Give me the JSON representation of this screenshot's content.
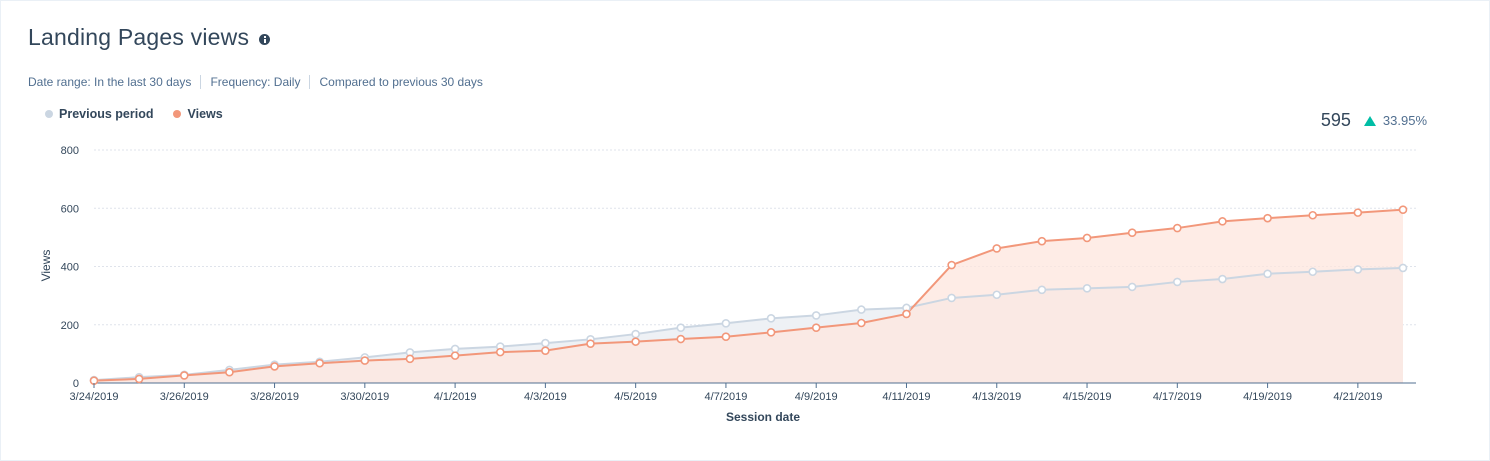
{
  "header": {
    "title": "Landing Pages views",
    "info_icon": "info-icon"
  },
  "filters": {
    "date_range": "Date range:  In the last 30 days",
    "frequency": "Frequency:  Daily",
    "compare": "Compared to previous 30 days"
  },
  "summary": {
    "total": "595",
    "change": "33.95%",
    "trend_icon": "triangle-up-icon",
    "trend_color": "#00bda5"
  },
  "chart_data": {
    "type": "area",
    "title": "",
    "xlabel": "Session date",
    "ylabel": "Views",
    "ylim": [
      0,
      800
    ],
    "yticks": [
      0,
      200,
      400,
      600,
      800
    ],
    "grid": true,
    "legend": "top-left",
    "x": [
      "3/24/2019",
      "3/25/2019",
      "3/26/2019",
      "3/27/2019",
      "3/28/2019",
      "3/29/2019",
      "3/30/2019",
      "3/31/2019",
      "4/1/2019",
      "4/2/2019",
      "4/3/2019",
      "4/4/2019",
      "4/5/2019",
      "4/6/2019",
      "4/7/2019",
      "4/8/2019",
      "4/9/2019",
      "4/10/2019",
      "4/11/2019",
      "4/12/2019",
      "4/13/2019",
      "4/14/2019",
      "4/15/2019",
      "4/16/2019",
      "4/17/2019",
      "4/18/2019",
      "4/19/2019",
      "4/20/2019",
      "4/21/2019",
      "4/22/2019"
    ],
    "xtick_labels": [
      "3/24/2019",
      "3/26/2019",
      "3/28/2019",
      "3/30/2019",
      "4/1/2019",
      "4/3/2019",
      "4/5/2019",
      "4/7/2019",
      "4/9/2019",
      "4/11/2019",
      "4/13/2019",
      "4/15/2019",
      "4/17/2019",
      "4/19/2019",
      "4/21/2019"
    ],
    "series": [
      {
        "name": "Previous period",
        "color": "#cbd6e2",
        "fill": "#eef1f5",
        "values": [
          10,
          20,
          28,
          45,
          63,
          73,
          88,
          105,
          117,
          125,
          137,
          150,
          168,
          190,
          205,
          222,
          232,
          252,
          258,
          292,
          303,
          320,
          325,
          330,
          347,
          357,
          375,
          382,
          390,
          395
        ]
      },
      {
        "name": "Views",
        "color": "#f2977a",
        "fill": "#fde6dd",
        "values": [
          8,
          14,
          26,
          37,
          57,
          68,
          77,
          83,
          94,
          106,
          111,
          135,
          142,
          151,
          159,
          174,
          190,
          206,
          237,
          405,
          462,
          487,
          498,
          516,
          532,
          555,
          566,
          576,
          585,
          595
        ]
      }
    ]
  }
}
